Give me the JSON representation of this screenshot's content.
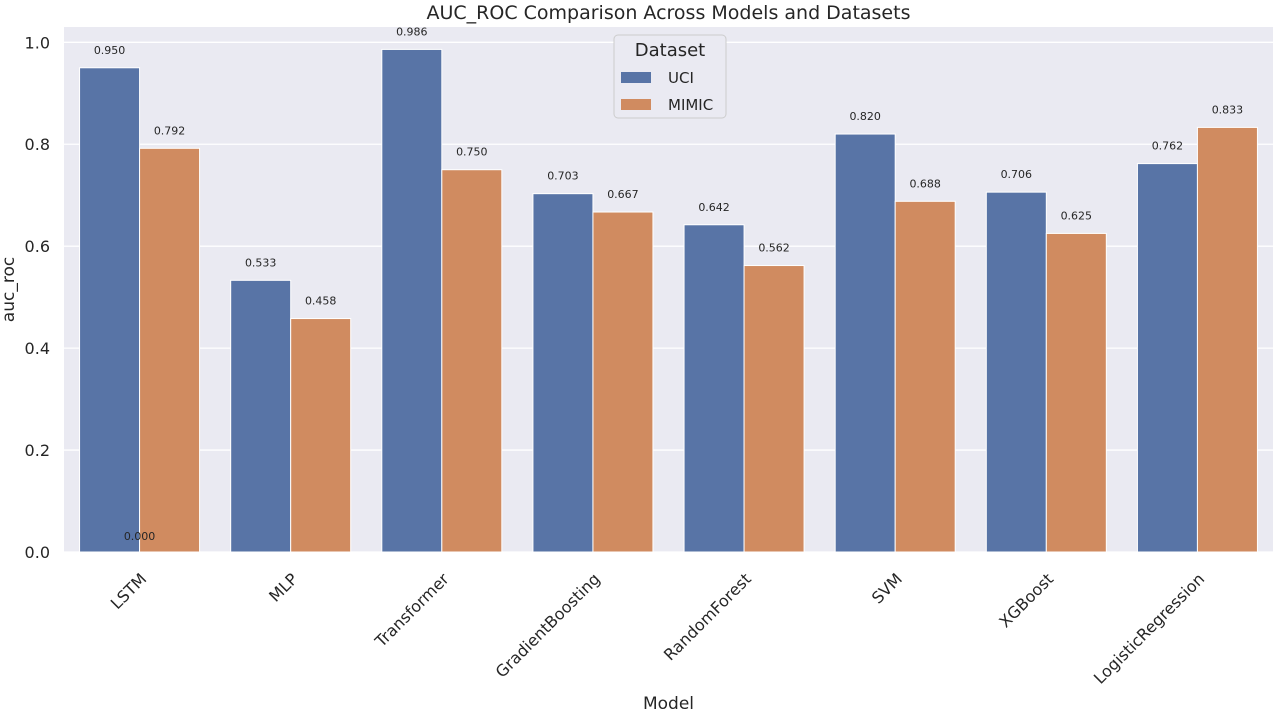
{
  "chart_data": {
    "type": "bar",
    "title": "AUC_ROC Comparison Across Models and Datasets",
    "xlabel": "Model",
    "ylabel": "auc_roc",
    "categories": [
      "LSTM",
      "MLP",
      "Transformer",
      "GradientBoosting",
      "RandomForest",
      "SVM",
      "XGBoost",
      "LogisticRegression"
    ],
    "series": [
      {
        "name": "UCI",
        "color": "#5874a6",
        "values": [
          0.95,
          0.533,
          0.986,
          0.703,
          0.642,
          0.82,
          0.706,
          0.762
        ]
      },
      {
        "name": "MIMIC",
        "color": "#d08b60",
        "values": [
          0.792,
          0.458,
          0.75,
          0.667,
          0.562,
          0.688,
          0.625,
          0.833
        ]
      }
    ],
    "bar_labels": [
      [
        "0.950",
        "0.533",
        "0.986",
        "0.703",
        "0.642",
        "0.820",
        "0.706",
        "0.762"
      ],
      [
        "0.792",
        "0.458",
        "0.750",
        "0.667",
        "0.562",
        "0.688",
        "0.625",
        "0.833"
      ]
    ],
    "extra_annotations": [
      {
        "category": "LSTM",
        "y": 0.0,
        "text": "0.000"
      }
    ],
    "ylim": [
      0,
      1.03
    ],
    "yticks": [
      0.0,
      0.2,
      0.4,
      0.6,
      0.8,
      1.0
    ],
    "ytick_labels": [
      "0.0",
      "0.2",
      "0.4",
      "0.6",
      "0.8",
      "1.0"
    ],
    "grid": true,
    "legend": {
      "title": "Dataset",
      "placement": "top-center"
    },
    "background_color": "#eaeaf2"
  }
}
